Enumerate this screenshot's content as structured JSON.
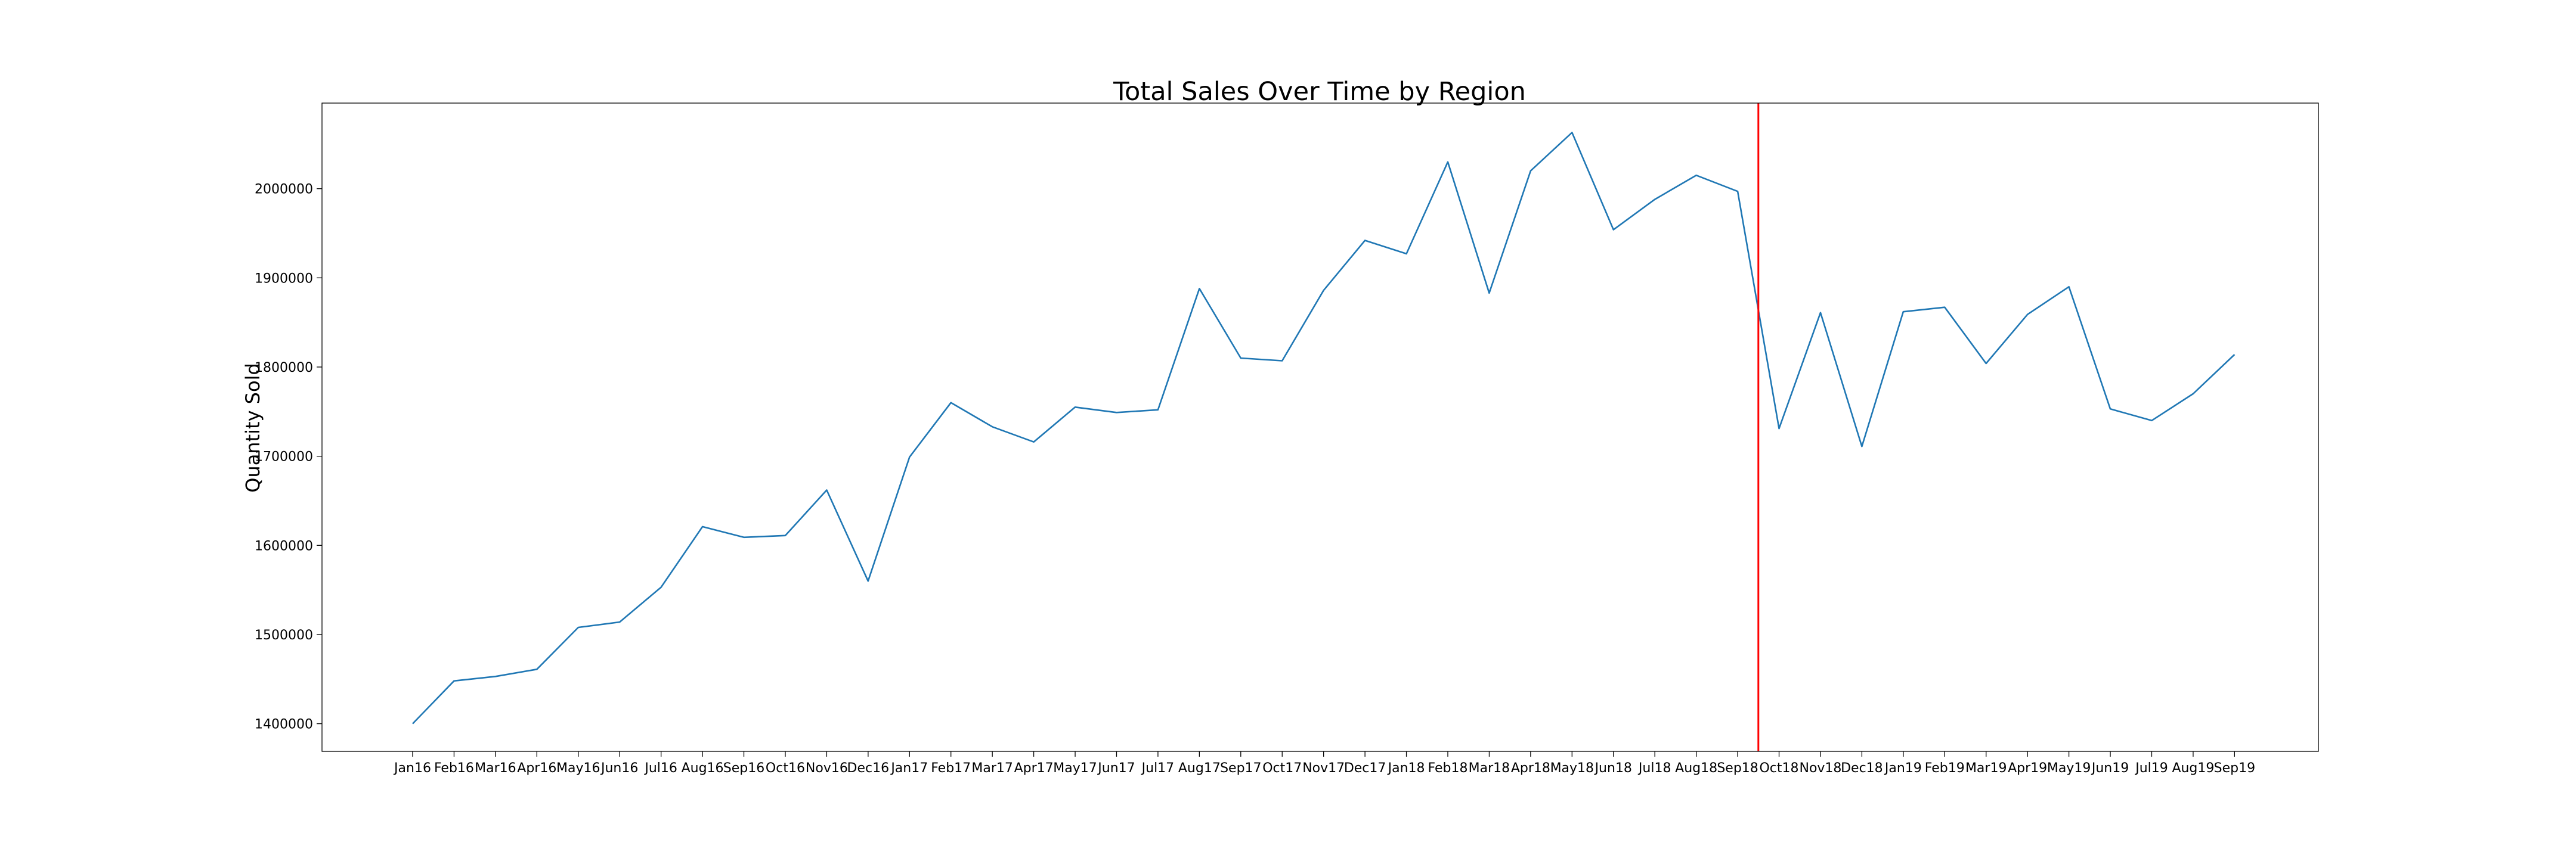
{
  "chart_data": {
    "type": "line",
    "title": "Total Sales Over Time by Region",
    "xlabel": "",
    "ylabel": "Quantity Sold",
    "categories": [
      "Jan16",
      "Feb16",
      "Mar16",
      "Apr16",
      "May16",
      "Jun16",
      "Jul16",
      "Aug16",
      "Sep16",
      "Oct16",
      "Nov16",
      "Dec16",
      "Jan17",
      "Feb17",
      "Mar17",
      "Apr17",
      "May17",
      "Jun17",
      "Jul17",
      "Aug17",
      "Sep17",
      "Oct17",
      "Nov17",
      "Dec17",
      "Jan18",
      "Feb18",
      "Mar18",
      "Apr18",
      "May18",
      "Jun18",
      "Jul18",
      "Aug18",
      "Sep18",
      "Oct18",
      "Nov18",
      "Dec18",
      "Jan19",
      "Feb19",
      "Mar19",
      "Apr19",
      "May19",
      "Jun19",
      "Jul19",
      "Aug19",
      "Sep19"
    ],
    "series": [
      {
        "values": [
          1400000,
          1448000,
          1453000,
          1461000,
          1508000,
          1514000,
          1553000,
          1621000,
          1609000,
          1611000,
          1662000,
          1560000,
          1699000,
          1760000,
          1733000,
          1716000,
          1755000,
          1749000,
          1752000,
          1888000,
          1810000,
          1807000,
          1886000,
          1942000,
          1927000,
          2030000,
          1883000,
          2020000,
          2063000,
          1954000,
          1988000,
          2015000,
          1997000,
          1731000,
          1861000,
          1711000,
          1862000,
          1867000,
          1804000,
          1859000,
          1890000,
          1753000,
          1740000,
          1770000,
          1814000
        ],
        "color": "#1f77b4"
      }
    ],
    "yticks": [
      "1400000",
      "1500000",
      "1600000",
      "1700000",
      "1800000",
      "1900000",
      "2000000"
    ],
    "ylim": [
      1369000,
      2096000
    ],
    "vline": {
      "between": [
        "Sep18",
        "Oct18"
      ],
      "color": "#ff0000"
    },
    "grid": false,
    "legend": "none"
  }
}
